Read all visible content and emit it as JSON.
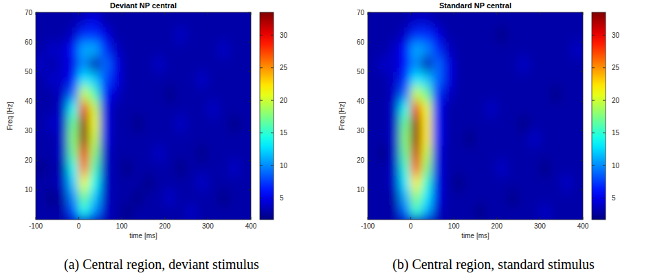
{
  "chart_data": [
    {
      "type": "heatmap",
      "title": "Deviant NP central",
      "caption": "(a) Central region, deviant stimulus",
      "x_label": "time [ms]",
      "y_label": "Freq [Hz]",
      "xlim": [
        -100,
        400
      ],
      "xticks": [
        -100,
        0,
        100,
        200,
        300,
        400
      ],
      "ylim": [
        0,
        70
      ],
      "yticks": [
        10,
        20,
        30,
        40,
        50,
        60,
        70
      ],
      "color": "jet",
      "colorbar": {
        "lim": [
          1.7,
          33.5
        ],
        "ticks": [
          5,
          10,
          15,
          20,
          25,
          30
        ]
      },
      "cell_x": [
        -87.5,
        -62.5,
        -37.5,
        -12.5,
        12.5,
        37.5,
        62.5,
        87.5,
        112.5,
        137.5,
        162.5,
        187.5,
        212.5,
        237.5,
        262.5,
        287.5,
        312.5,
        337.5,
        362.5,
        387.5
      ],
      "cell_y": [
        2.5,
        7.5,
        12.5,
        17.5,
        22.5,
        27.5,
        32.5,
        37.5,
        42.5,
        47.5,
        52.5,
        57.5,
        62.5,
        67.5
      ],
      "cells": [
        [
          3,
          3,
          3,
          8,
          14,
          10,
          4,
          3,
          2,
          3,
          3,
          3,
          3,
          3,
          4,
          3,
          3,
          3,
          3,
          3
        ],
        [
          3,
          2,
          3,
          10,
          17,
          12,
          4,
          3,
          3,
          2,
          3,
          3,
          4,
          3,
          3,
          3,
          3,
          2,
          3,
          3
        ],
        [
          3,
          3,
          4,
          12,
          21,
          14,
          4,
          3,
          3,
          3,
          2,
          3,
          3,
          3,
          3,
          4,
          3,
          3,
          3,
          3
        ],
        [
          2,
          3,
          3,
          14,
          26,
          16,
          4,
          3,
          2,
          3,
          3,
          3,
          3,
          2,
          3,
          3,
          3,
          3,
          4,
          3
        ],
        [
          3,
          3,
          4,
          17,
          30,
          18,
          4,
          3,
          3,
          3,
          3,
          4,
          3,
          3,
          3,
          2,
          3,
          3,
          3,
          3
        ],
        [
          3,
          3,
          4,
          18,
          33,
          20,
          5,
          3,
          3,
          3,
          3,
          3,
          3,
          3,
          3,
          3,
          3,
          3,
          3,
          3
        ],
        [
          3,
          4,
          4,
          17,
          33,
          21,
          5,
          3,
          3,
          2,
          3,
          3,
          3,
          4,
          3,
          3,
          3,
          3,
          2,
          3
        ],
        [
          3,
          3,
          4,
          14,
          30,
          20,
          5,
          3,
          3,
          3,
          3,
          3,
          3,
          3,
          3,
          3,
          4,
          3,
          3,
          3
        ],
        [
          3,
          3,
          4,
          9,
          20,
          16,
          6,
          4,
          3,
          3,
          3,
          3,
          2,
          3,
          3,
          3,
          3,
          3,
          3,
          3
        ],
        [
          3,
          4,
          4,
          6,
          13,
          12,
          8,
          5,
          3,
          3,
          3,
          3,
          3,
          3,
          3,
          4,
          3,
          3,
          3,
          3
        ],
        [
          4,
          3,
          4,
          5,
          10,
          3,
          9,
          5,
          3,
          3,
          3,
          4,
          3,
          3,
          3,
          3,
          3,
          3,
          3,
          3
        ],
        [
          3,
          4,
          4,
          6,
          11,
          11,
          7,
          4,
          3,
          3,
          3,
          3,
          3,
          3,
          3,
          3,
          3,
          4,
          3,
          3
        ],
        [
          3,
          3,
          3,
          4,
          7,
          7,
          5,
          3,
          3,
          3,
          3,
          3,
          3,
          4,
          3,
          3,
          3,
          3,
          3,
          3
        ],
        [
          3,
          3,
          3,
          3,
          4,
          5,
          3,
          3,
          3,
          3,
          3,
          3,
          3,
          3,
          3,
          3,
          3,
          3,
          3,
          3
        ]
      ]
    },
    {
      "type": "heatmap",
      "title": "Standard NP central",
      "caption": "(b) Central region, standard stimulus",
      "x_label": "time [ms]",
      "y_label": "Freq [Hz]",
      "xlim": [
        -100,
        400
      ],
      "xticks": [
        -100,
        0,
        100,
        200,
        300,
        400
      ],
      "ylim": [
        0,
        70
      ],
      "yticks": [
        10,
        20,
        30,
        40,
        50,
        60,
        70
      ],
      "color": "jet",
      "colorbar": {
        "lim": [
          1.7,
          33.5
        ],
        "ticks": [
          5,
          10,
          15,
          20,
          25,
          30
        ]
      },
      "cell_x": [
        -87.5,
        -62.5,
        -37.5,
        -12.5,
        12.5,
        37.5,
        62.5,
        87.5,
        112.5,
        137.5,
        162.5,
        187.5,
        212.5,
        237.5,
        262.5,
        287.5,
        312.5,
        337.5,
        362.5,
        387.5
      ],
      "cell_y": [
        2.5,
        7.5,
        12.5,
        17.5,
        22.5,
        27.5,
        32.5,
        37.5,
        42.5,
        47.5,
        52.5,
        57.5,
        62.5,
        67.5
      ],
      "cells": [
        [
          3,
          3,
          3,
          9,
          15,
          11,
          4,
          3,
          3,
          3,
          2,
          3,
          3,
          3,
          3,
          3,
          4,
          3,
          3,
          3
        ],
        [
          3,
          3,
          3,
          11,
          18,
          13,
          5,
          3,
          3,
          3,
          3,
          3,
          3,
          2,
          3,
          3,
          3,
          3,
          3,
          3
        ],
        [
          3,
          3,
          4,
          13,
          22,
          15,
          5,
          3,
          2,
          3,
          3,
          3,
          3,
          3,
          3,
          3,
          3,
          3,
          4,
          3
        ],
        [
          3,
          3,
          4,
          15,
          27,
          18,
          5,
          3,
          3,
          3,
          3,
          3,
          4,
          3,
          3,
          3,
          2,
          3,
          3,
          3
        ],
        [
          3,
          2,
          4,
          17,
          31,
          20,
          5,
          3,
          3,
          3,
          3,
          3,
          3,
          3,
          3,
          3,
          3,
          3,
          3,
          3
        ],
        [
          3,
          3,
          4,
          18,
          33,
          22,
          6,
          3,
          3,
          2,
          3,
          3,
          3,
          3,
          3,
          4,
          3,
          3,
          3,
          3
        ],
        [
          3,
          3,
          4,
          17,
          33,
          22,
          6,
          3,
          3,
          3,
          3,
          3,
          3,
          3,
          2,
          3,
          3,
          3,
          3,
          3
        ],
        [
          3,
          3,
          4,
          14,
          30,
          21,
          6,
          3,
          3,
          3,
          3,
          4,
          3,
          3,
          3,
          3,
          3,
          3,
          3,
          3
        ],
        [
          3,
          3,
          4,
          9,
          20,
          17,
          7,
          4,
          3,
          3,
          3,
          3,
          3,
          3,
          3,
          3,
          3,
          2,
          3,
          3
        ],
        [
          3,
          3,
          4,
          7,
          13,
          12,
          9,
          5,
          3,
          3,
          3,
          3,
          3,
          3,
          3,
          3,
          3,
          3,
          3,
          3
        ],
        [
          3,
          4,
          4,
          6,
          10,
          3,
          9,
          5,
          3,
          3,
          3,
          3,
          3,
          3,
          4,
          3,
          3,
          3,
          3,
          3
        ],
        [
          3,
          3,
          4,
          6,
          11,
          10,
          7,
          4,
          3,
          3,
          3,
          3,
          3,
          3,
          3,
          3,
          3,
          3,
          3,
          4
        ],
        [
          3,
          3,
          3,
          4,
          7,
          7,
          5,
          3,
          3,
          3,
          3,
          3,
          2,
          3,
          3,
          3,
          3,
          3,
          3,
          3
        ],
        [
          3,
          3,
          3,
          3,
          4,
          4,
          3,
          3,
          3,
          3,
          3,
          3,
          3,
          3,
          3,
          3,
          3,
          3,
          3,
          3
        ]
      ]
    }
  ]
}
